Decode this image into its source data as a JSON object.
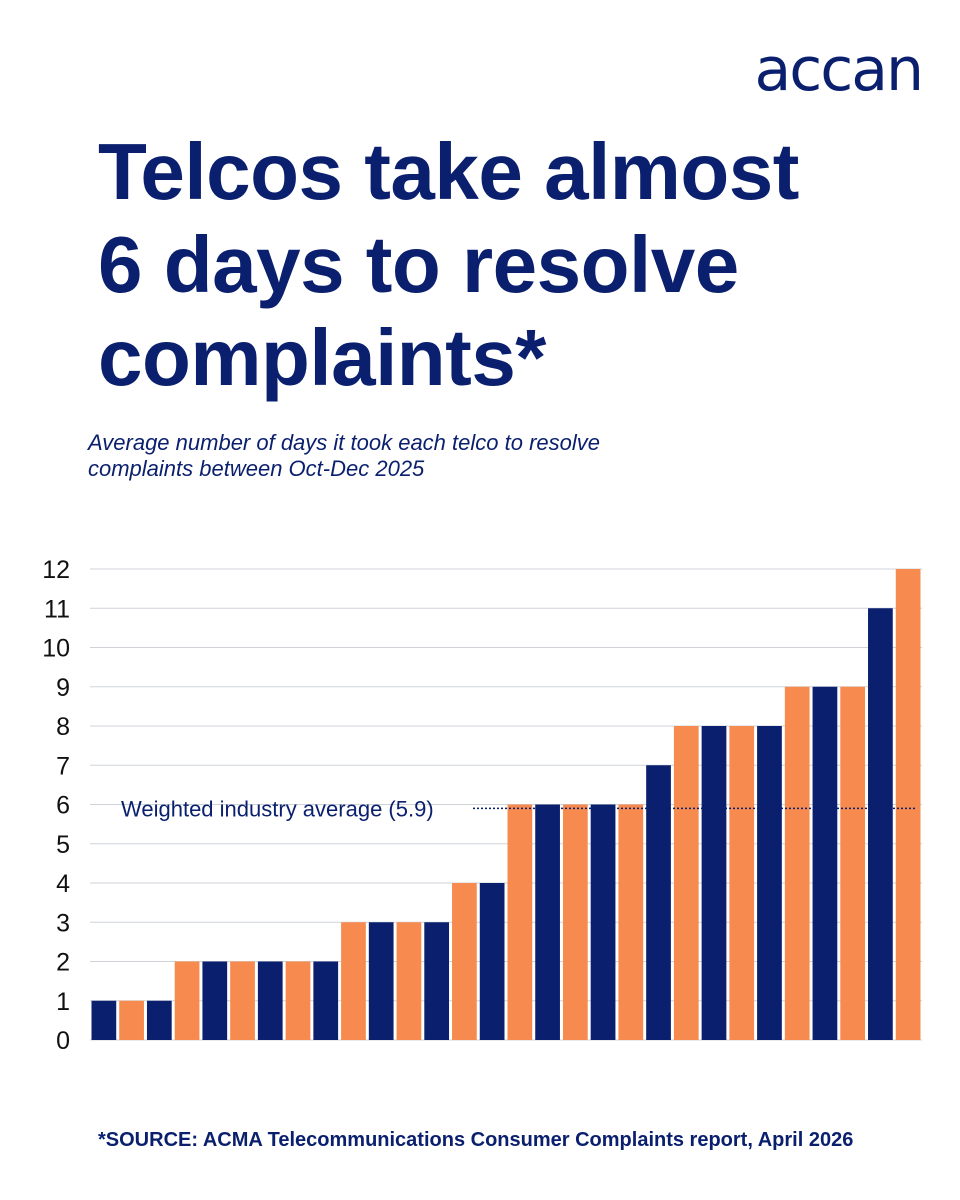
{
  "brand": {
    "logo_text": "accan",
    "navy": "#0a1f6e",
    "orange": "#f78a4f"
  },
  "headline": "Telcos take almost 6 days to resolve complaints*",
  "subtitle": "Average number of days it took each telco to resolve complaints between Oct-Dec 2025",
  "source": "*SOURCE: ACMA Telecommunications Consumer Complaints report, April 2026",
  "chart_data": {
    "type": "bar",
    "title": "",
    "xlabel": "",
    "ylabel": "",
    "ylim": [
      0,
      12
    ],
    "yticks": [
      0,
      1,
      2,
      3,
      4,
      5,
      6,
      7,
      8,
      9,
      10,
      11,
      12
    ],
    "grid": true,
    "values": [
      1,
      1,
      1,
      2,
      2,
      2,
      2,
      2,
      2,
      3,
      3,
      3,
      3,
      4,
      4,
      6,
      6,
      6,
      6,
      6,
      7,
      8,
      8,
      8,
      8,
      9,
      9,
      9,
      11,
      12
    ],
    "bar_colors": [
      "navy",
      "orange",
      "navy",
      "orange",
      "navy",
      "orange",
      "navy",
      "orange",
      "navy",
      "orange",
      "navy",
      "orange",
      "navy",
      "orange",
      "navy",
      "orange",
      "navy",
      "orange",
      "navy",
      "orange",
      "navy",
      "orange",
      "navy",
      "orange",
      "navy",
      "orange",
      "navy",
      "orange",
      "navy",
      "orange"
    ],
    "reference_line": {
      "value": 5.9,
      "label": "Weighted industry average (5.9)"
    }
  }
}
